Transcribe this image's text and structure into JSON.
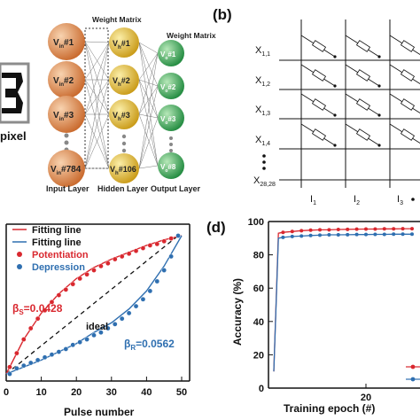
{
  "panel_a": {
    "image_label": "pixel",
    "weight_matrix_labels": [
      "Weight Matrix",
      "Weight Matrix"
    ],
    "input_neurons": [
      "V",
      "V",
      "V",
      "V"
    ],
    "input_neuron_subs": [
      "in",
      "in",
      "in",
      "in"
    ],
    "input_neuron_ids": [
      "#1",
      "#2",
      "#3",
      "#784"
    ],
    "hidden_neurons": [
      "V",
      "V",
      "V",
      "V"
    ],
    "hidden_neuron_subs": [
      "h",
      "h",
      "h",
      "h"
    ],
    "hidden_neuron_ids": [
      "#1",
      "#2",
      "#3",
      "#106"
    ],
    "output_neurons": [
      "V",
      "V",
      "V",
      "V"
    ],
    "output_neuron_subs": [
      "o",
      "o",
      "o",
      "o"
    ],
    "output_neuron_ids": [
      "#1",
      "#2",
      "#3",
      "#8"
    ],
    "layer_labels": [
      "Input Layer",
      "Hidden Layer",
      "Output Layer"
    ],
    "colors": {
      "input": "#e0894a",
      "hidden": "#e8c33a",
      "output": "#3aa25a"
    }
  },
  "panel_b": {
    "label": "(b)",
    "rows": [
      "X",
      "X",
      "X",
      "X",
      "X"
    ],
    "row_subs": [
      "1,1",
      "1,2",
      "1,3",
      "1,4",
      "28,28"
    ],
    "columns": [
      "I",
      "I",
      "I"
    ],
    "column_subs": [
      "1",
      "2",
      "3"
    ]
  },
  "panel_c": {
    "xlabel": "Pulse number",
    "xticks": [
      "0",
      "10",
      "20",
      "30",
      "40",
      "50"
    ],
    "legend": [
      "Fitting line",
      "Fitting line",
      "Potentiation",
      "Depression"
    ],
    "beta_s": "β",
    "beta_s_sub": "S",
    "beta_s_value": "=0.0428",
    "beta_r": "β",
    "beta_r_sub": "R",
    "beta_r_value": "=0.0562",
    "ideal_label": "ideal",
    "colors": {
      "potentiation": "#d9282f",
      "depression": "#2f6fb0"
    }
  },
  "panel_d": {
    "label": "(d)",
    "ylabel": "Accuracy (%)",
    "xlabel": "Training epoch (#)",
    "yticks": [
      "0",
      "20",
      "40",
      "60",
      "80",
      "100"
    ],
    "xticks": [
      "20"
    ]
  },
  "chart_data": [
    {
      "type": "scatter",
      "xlabel": "Pulse number",
      "xlim": [
        0,
        50
      ],
      "ylim": [
        0,
        1
      ],
      "series": [
        {
          "name": "Potentiation",
          "x": [
            1,
            3,
            5,
            7,
            9,
            11,
            13,
            15,
            17,
            19,
            21,
            23,
            25,
            27,
            29,
            31,
            33,
            35,
            37,
            39,
            41,
            43,
            45,
            47,
            49
          ],
          "values": [
            0.05,
            0.15,
            0.25,
            0.33,
            0.4,
            0.46,
            0.52,
            0.57,
            0.61,
            0.65,
            0.69,
            0.72,
            0.75,
            0.78,
            0.8,
            0.83,
            0.85,
            0.87,
            0.89,
            0.91,
            0.93,
            0.94,
            0.96,
            0.98,
            1.0
          ]
        },
        {
          "name": "Depression",
          "x": [
            1,
            3,
            5,
            7,
            9,
            11,
            13,
            15,
            17,
            19,
            21,
            23,
            25,
            27,
            29,
            31,
            33,
            35,
            37,
            39,
            41,
            43,
            45,
            47,
            49
          ],
          "values": [
            0.0,
            0.04,
            0.06,
            0.08,
            0.1,
            0.12,
            0.14,
            0.16,
            0.18,
            0.21,
            0.23,
            0.25,
            0.28,
            0.3,
            0.33,
            0.36,
            0.4,
            0.44,
            0.49,
            0.54,
            0.6,
            0.67,
            0.75,
            0.85,
            1.0
          ]
        },
        {
          "name": "Fitting line",
          "x": [
            0,
            5,
            10,
            15,
            20,
            25,
            30,
            35,
            40,
            45,
            50
          ],
          "values": [
            0.0,
            0.25,
            0.44,
            0.58,
            0.69,
            0.77,
            0.83,
            0.88,
            0.93,
            0.97,
            1.0
          ]
        },
        {
          "name": "Fitting line",
          "x": [
            0,
            5,
            10,
            15,
            20,
            25,
            30,
            35,
            40,
            45,
            50
          ],
          "values": [
            0.0,
            0.05,
            0.1,
            0.16,
            0.22,
            0.3,
            0.37,
            0.47,
            0.6,
            0.78,
            1.0
          ]
        }
      ]
    },
    {
      "type": "line",
      "xlabel": "Training epoch (#)",
      "ylabel": "Accuracy (%)",
      "ylim": [
        0,
        100
      ],
      "series": [
        {
          "x": [
            0,
            1,
            2,
            4,
            6,
            8,
            10,
            12,
            14,
            16,
            18,
            20,
            22,
            24,
            26,
            28,
            30
          ],
          "values": [
            10,
            93,
            93.5,
            94,
            94.5,
            94.8,
            95,
            95,
            95.2,
            95.3,
            95.4,
            95.5,
            95.5,
            95.6,
            95.6,
            95.7,
            95.7
          ]
        },
        {
          "x": [
            0,
            1,
            2,
            4,
            6,
            8,
            10,
            12,
            14,
            16,
            18,
            20,
            22,
            24,
            26,
            28,
            30
          ],
          "values": [
            10,
            90,
            90.5,
            91,
            91.3,
            91.6,
            91.8,
            92,
            92,
            92.1,
            92.2,
            92.2,
            92.3,
            92.3,
            92.4,
            92.4,
            92.4
          ]
        }
      ]
    }
  ]
}
